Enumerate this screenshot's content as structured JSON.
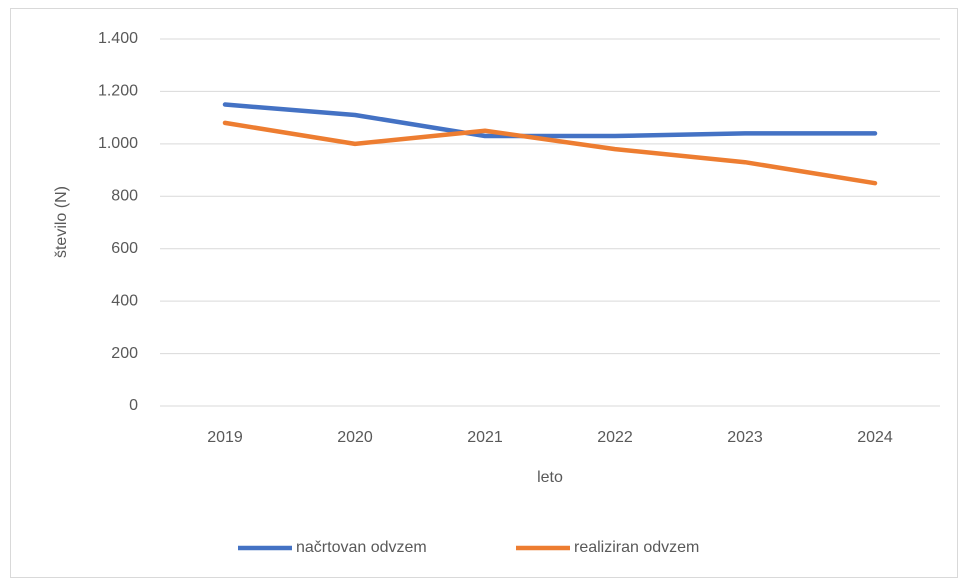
{
  "chart_data": {
    "type": "line",
    "categories": [
      "2019",
      "2020",
      "2021",
      "2022",
      "2023",
      "2024"
    ],
    "series": [
      {
        "name": "načrtovan odvzem",
        "color": "#4472c4",
        "values": [
          1150,
          1110,
          1030,
          1030,
          1040,
          1040
        ]
      },
      {
        "name": "realiziran odvzem",
        "color": "#ed7d31",
        "values": [
          1080,
          1000,
          1050,
          980,
          930,
          850
        ]
      }
    ],
    "ylim": [
      0,
      1400
    ],
    "yticks": [
      0,
      200,
      400,
      600,
      800,
      {
        "value": 1000,
        "label": "1.000"
      },
      {
        "value": 1200,
        "label": "1.200"
      },
      {
        "value": 1400,
        "label": "1.400"
      }
    ],
    "xlabel": "leto",
    "ylabel": "število (N)",
    "grid": true,
    "legend": "bottom"
  }
}
